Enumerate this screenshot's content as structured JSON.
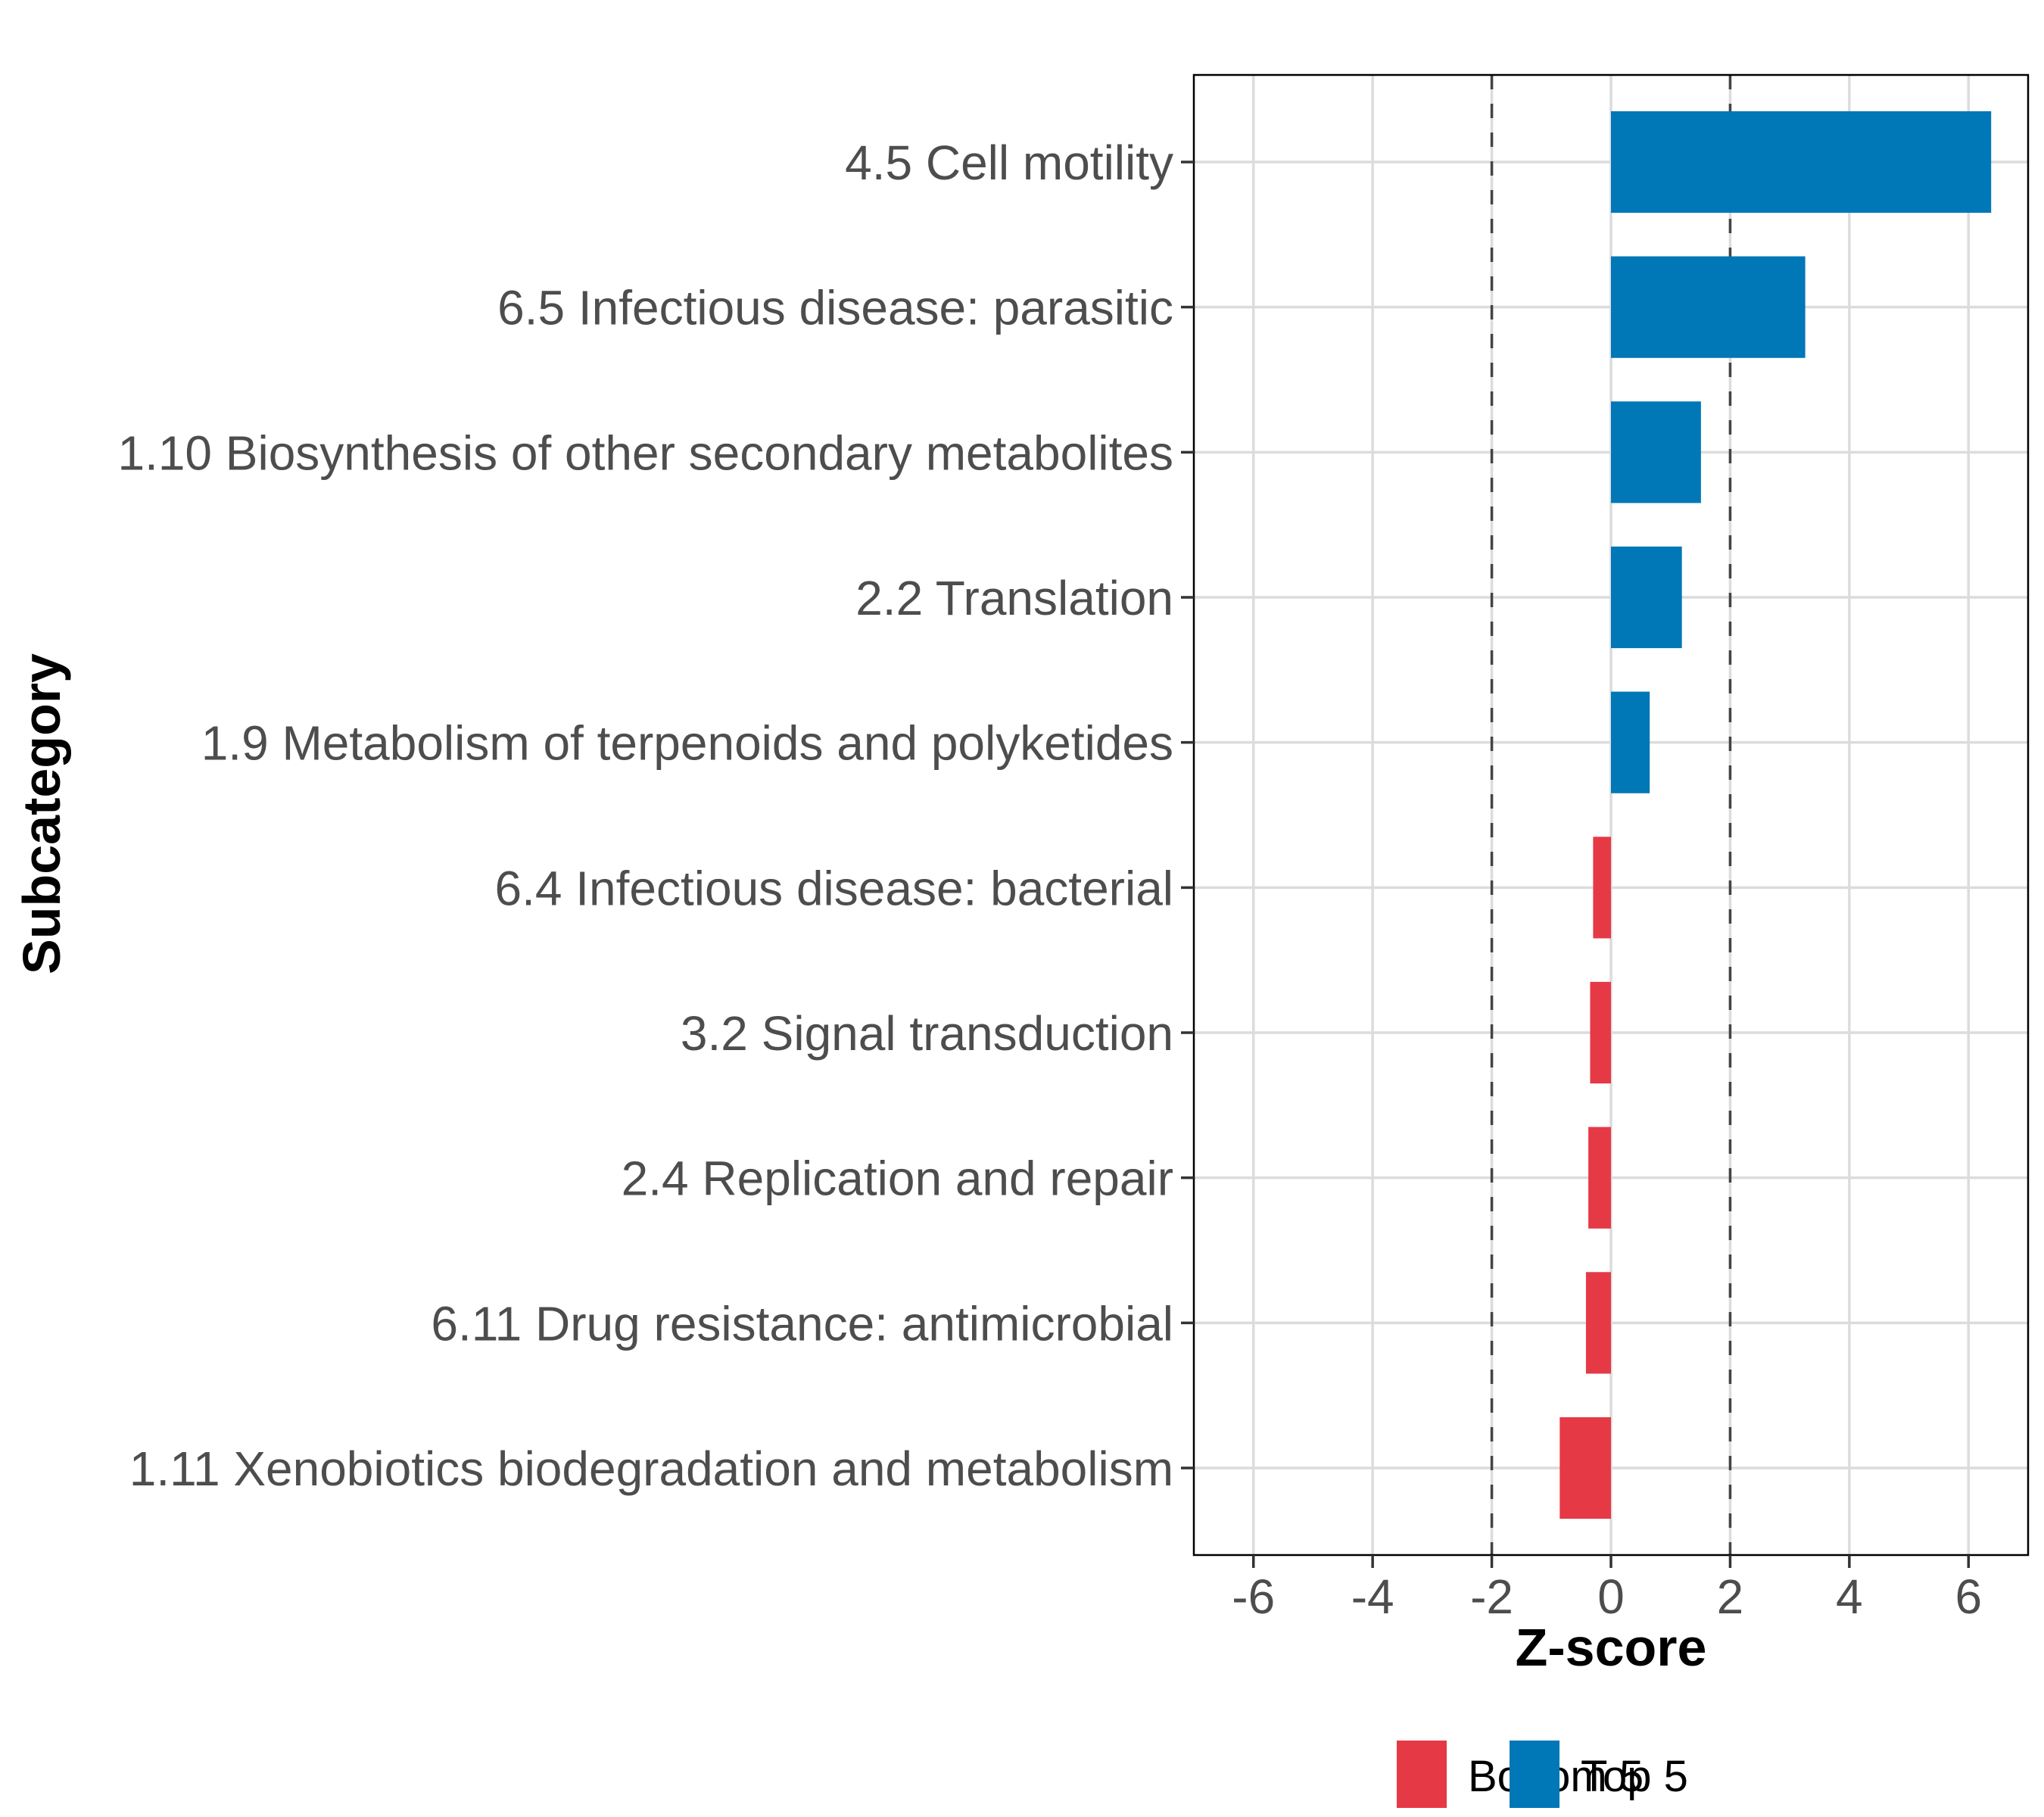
{
  "chart_data": {
    "type": "bar",
    "orientation": "horizontal",
    "title": "",
    "xlabel": "Z-score",
    "ylabel": "Subcategory",
    "xlim": [
      -7,
      7
    ],
    "xticks": [
      -6,
      -4,
      -2,
      0,
      2,
      4,
      6
    ],
    "xtick_labels": [
      "-6",
      "-4",
      "-2",
      "0",
      "2",
      "4",
      "6"
    ],
    "reference_lines": [
      -2,
      2
    ],
    "grid": true,
    "legend_position": "bottom",
    "categories": [
      "4.5 Cell motility",
      "6.5 Infectious disease: parasitic",
      "1.10 Biosynthesis of other secondary metabolites",
      "2.2 Translation",
      "1.9 Metabolism of terpenoids and polyketides",
      "6.4 Infectious disease: bacterial",
      "3.2 Signal transduction",
      "2.4 Replication and repair",
      "6.11 Drug resistance: antimicrobial",
      "1.11 Xenobiotics biodegradation and metabolism"
    ],
    "values": [
      6.38,
      3.26,
      1.51,
      1.19,
      0.65,
      -0.3,
      -0.35,
      -0.38,
      -0.42,
      -0.86
    ],
    "groups": [
      "Top 5",
      "Top 5",
      "Top 5",
      "Top 5",
      "Top 5",
      "Bottom 5",
      "Bottom 5",
      "Bottom 5",
      "Bottom 5",
      "Bottom 5"
    ],
    "legend": [
      {
        "name": "Bottom 5",
        "color": "#e63946"
      },
      {
        "name": "Top 5",
        "color": "#0077b6"
      }
    ]
  }
}
